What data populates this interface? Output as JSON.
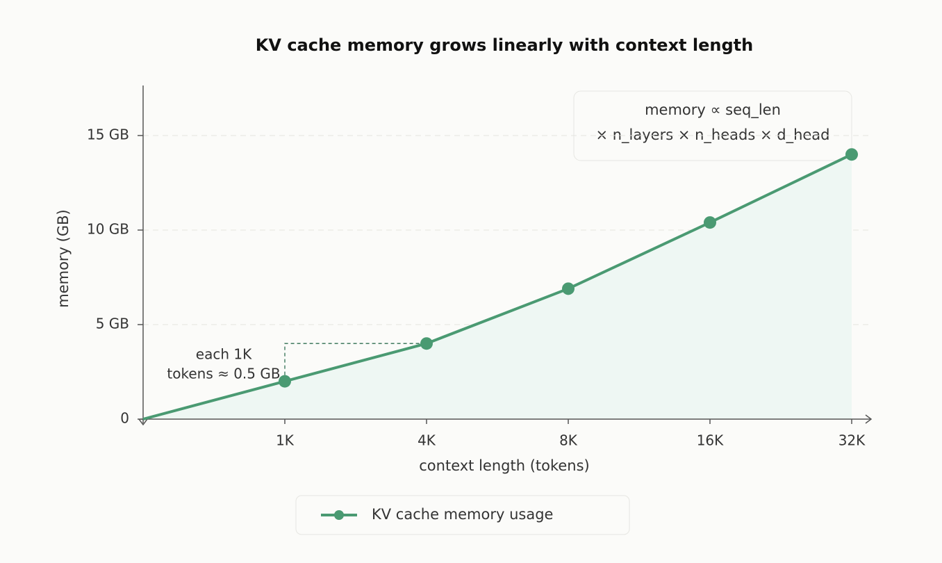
{
  "chart_data": {
    "type": "line",
    "title": "KV cache memory grows linearly with context length",
    "x_label": "context length (tokens)",
    "y_label": "memory (GB)",
    "categories": [
      null,
      "1K",
      "4K",
      "8K",
      "16K",
      "32K"
    ],
    "series": [
      {
        "name": "KV cache memory usage",
        "color": "#4a9a72",
        "values": [
          0,
          2.0,
          4.0,
          6.9,
          10.4,
          14.0
        ]
      }
    ],
    "ylim": [
      0,
      17.5
    ],
    "yticks": [
      0,
      {
        "value": 5,
        "label": "5 GB"
      },
      {
        "value": 10,
        "label": "10 GB"
      },
      {
        "value": 15,
        "label": "15 GB"
      }
    ],
    "grid": true,
    "annotation": [
      "each 1K",
      "tokens ≈ 0.5 GB"
    ],
    "formula": [
      "memory ∝ seq_len",
      "× n_layers × n_heads × d_head"
    ]
  }
}
